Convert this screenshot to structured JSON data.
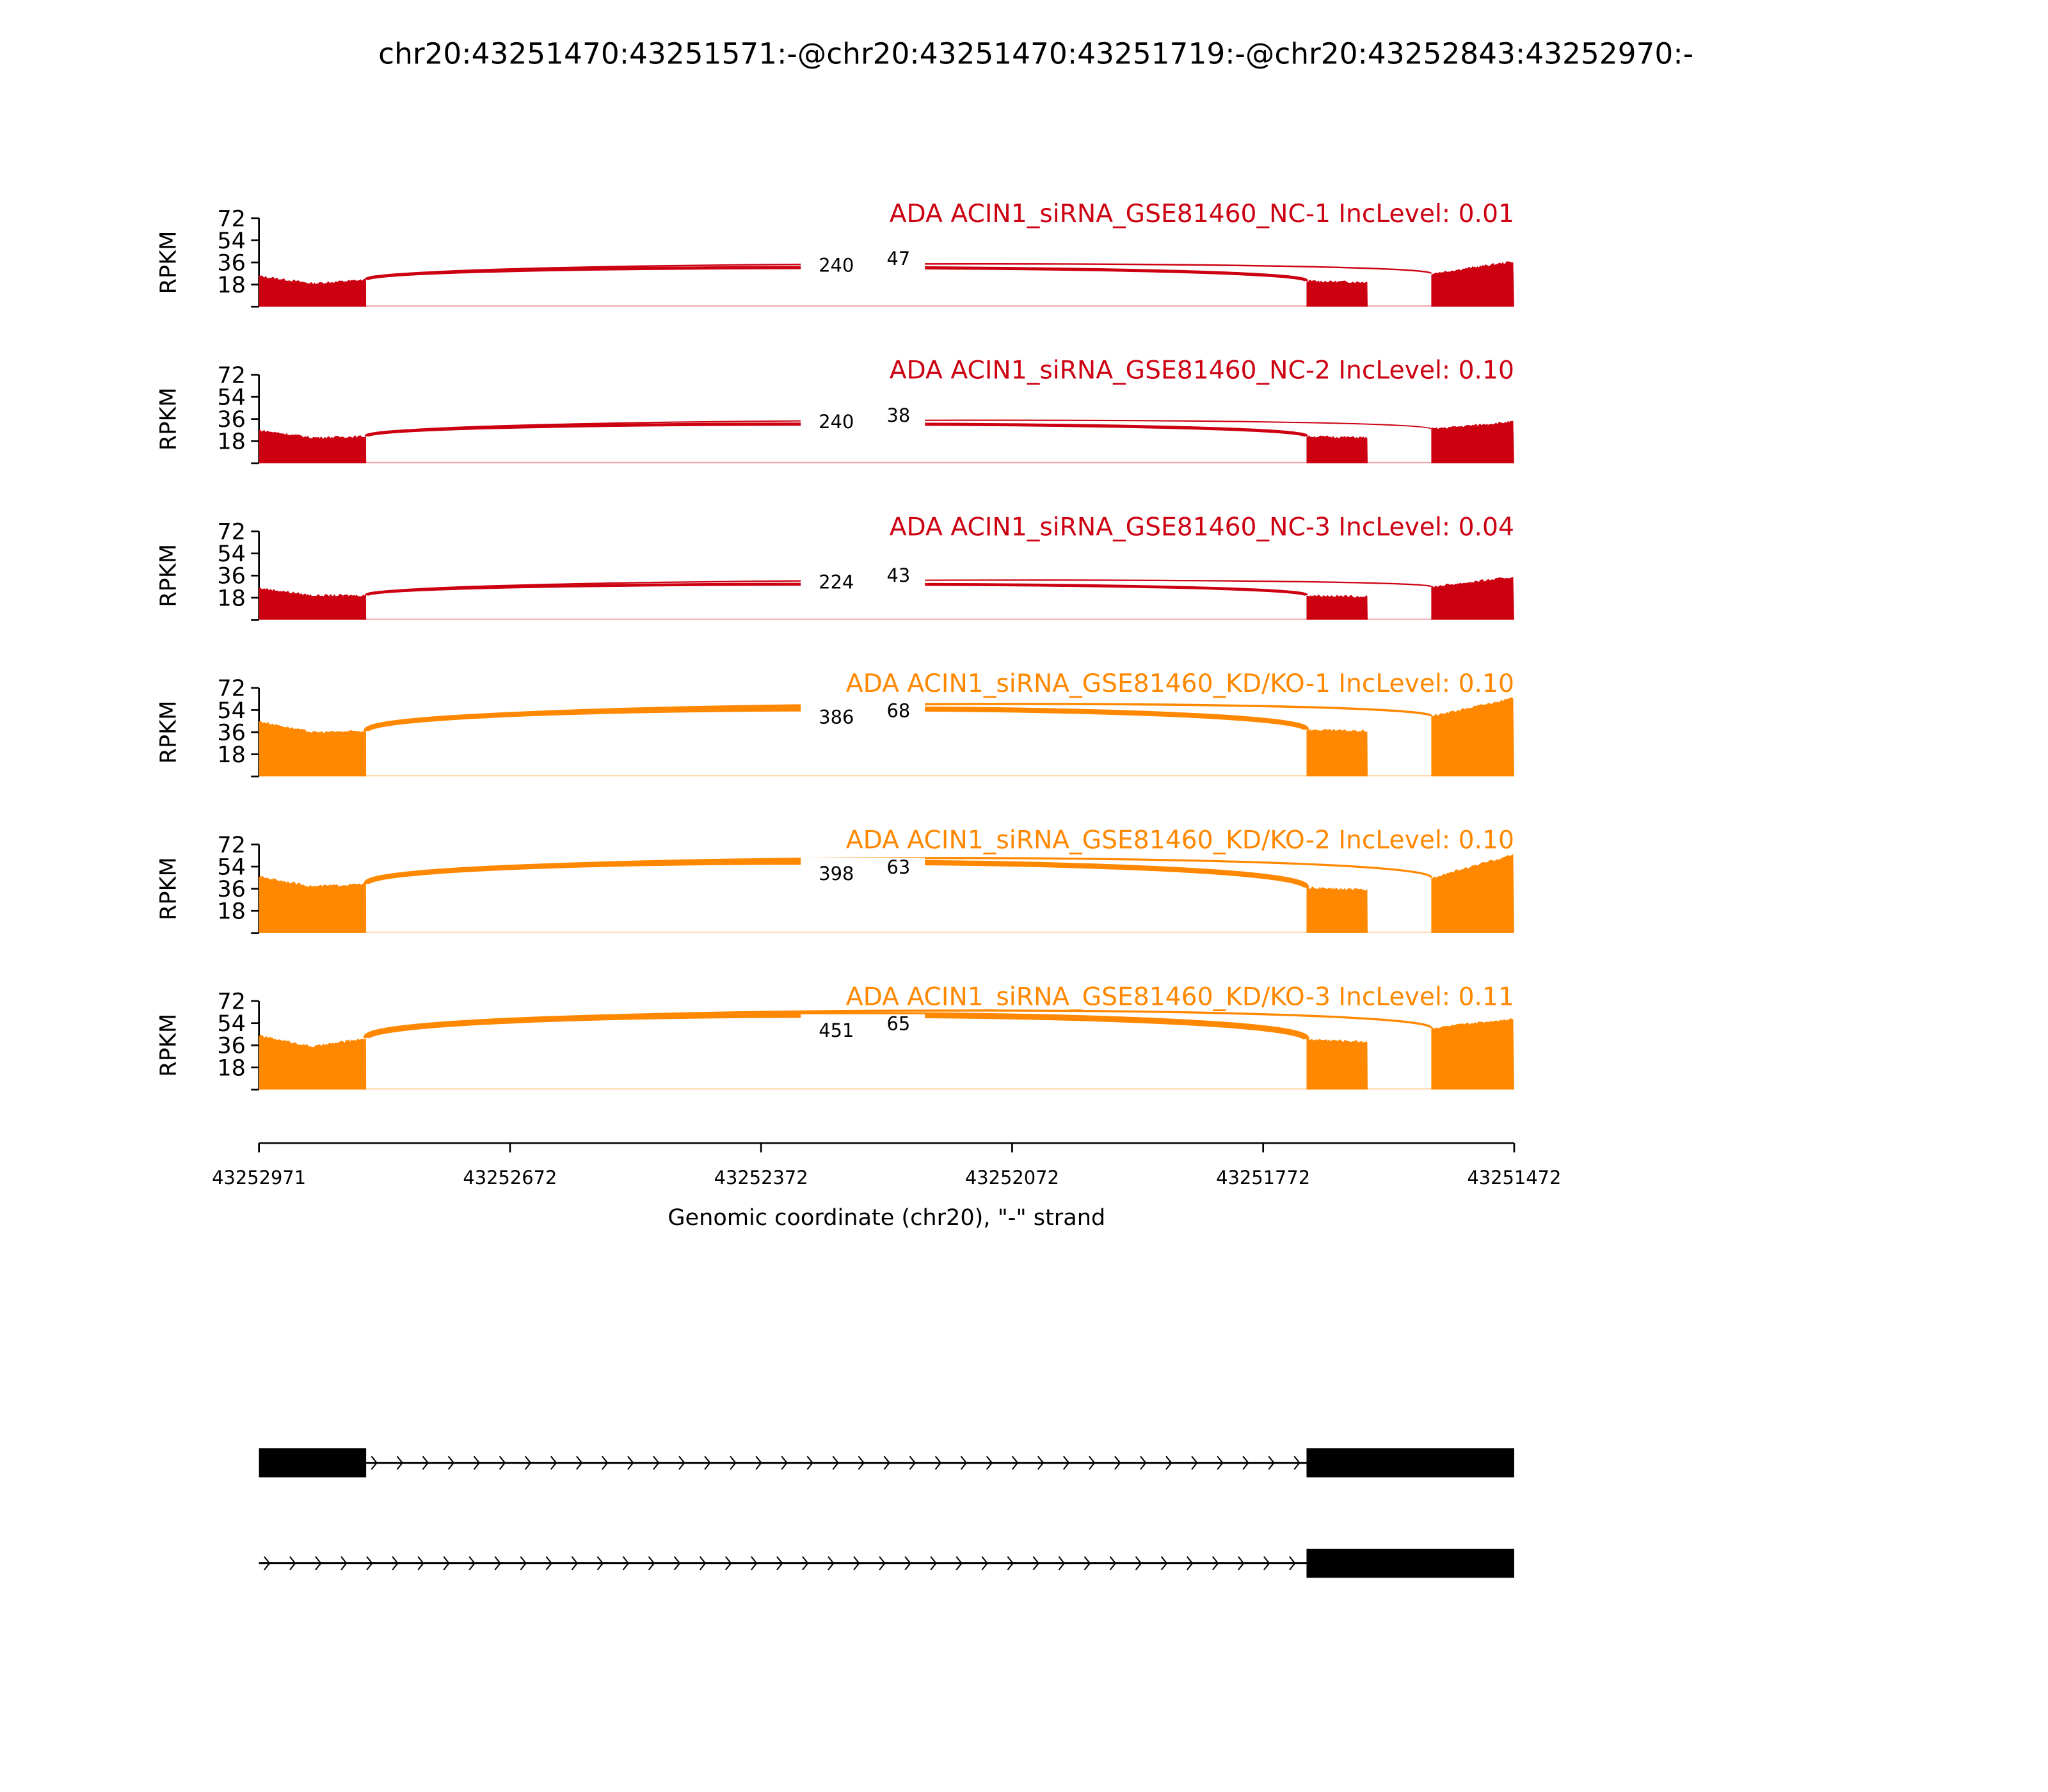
{
  "chart_data": {
    "type": "area",
    "title": "chr20:43251470:43251571:-@chr20:43251470:43251719:-@chr20:43252843:43252970:-",
    "xlabel": "Genomic coordinate (chr20), \"-\" strand",
    "ylabel": "RPKM",
    "xlim": [
      43252971,
      43251472
    ],
    "x_ticks": [
      "43252971",
      "43252672",
      "43252372",
      "43252072",
      "43251772",
      "43251472"
    ],
    "ylim": [
      0,
      72
    ],
    "y_ticks": [
      "18",
      "36",
      "54",
      "72"
    ],
    "grid": false,
    "exons": [
      {
        "start": 43252971,
        "end": 43252843
      },
      {
        "start": 43251720,
        "end": 43251647
      },
      {
        "start": 43251571,
        "end": 43251472
      }
    ],
    "colors": {
      "control": "#cc0011",
      "knockdown": "#ff8800"
    },
    "series": [
      {
        "name": "ADA ACIN1_siRNA_GSE81460_NC-1 IncLevel: 0.01",
        "group": "control",
        "junction_counts": {
          "exon1_exon2": "240",
          "exon1_exon3": "47"
        },
        "coverage": {
          "exon1": [
            25,
            19,
            22
          ],
          "exon2": [
            21,
            20
          ],
          "exon3": [
            27,
            37
          ]
        }
      },
      {
        "name": "ADA ACIN1_siRNA_GSE81460_NC-2 IncLevel: 0.10",
        "group": "control",
        "junction_counts": {
          "exon1_exon2": "240",
          "exon1_exon3": "38"
        },
        "coverage": {
          "exon1": [
            27,
            21,
            22
          ],
          "exon2": [
            22,
            21
          ],
          "exon3": [
            28,
            34
          ]
        }
      },
      {
        "name": "ADA ACIN1_siRNA_GSE81460_NC-3 IncLevel: 0.04",
        "group": "control",
        "junction_counts": {
          "exon1_exon2": "224",
          "exon1_exon3": "43"
        },
        "coverage": {
          "exon1": [
            26,
            20,
            20
          ],
          "exon2": [
            20,
            19
          ],
          "exon3": [
            27,
            35
          ]
        }
      },
      {
        "name": "ADA ACIN1_siRNA_GSE81460_KD/KO-1 IncLevel: 0.10",
        "group": "knockdown",
        "junction_counts": {
          "exon1_exon2": "386",
          "exon1_exon3": "68"
        },
        "coverage": {
          "exon1": [
            45,
            36,
            37
          ],
          "exon2": [
            38,
            37
          ],
          "exon3": [
            49,
            64
          ]
        }
      },
      {
        "name": "ADA ACIN1_siRNA_GSE81460_KD/KO-2 IncLevel: 0.10",
        "group": "knockdown",
        "junction_counts": {
          "exon1_exon2": "398",
          "exon1_exon3": "63"
        },
        "coverage": {
          "exon1": [
            46,
            38,
            40
          ],
          "exon2": [
            37,
            35
          ],
          "exon3": [
            45,
            64
          ]
        }
      },
      {
        "name": "ADA ACIN1_siRNA_GSE81460_KD/KO-3 IncLevel: 0.11",
        "group": "knockdown",
        "junction_counts": {
          "exon1_exon2": "451",
          "exon1_exon3": "65"
        },
        "coverage": {
          "exon1": [
            44,
            35,
            42
          ],
          "exon2": [
            41,
            39
          ],
          "exon3": [
            50,
            58
          ]
        }
      }
    ],
    "isoforms": [
      {
        "exons": [
          0,
          1,
          2
        ]
      },
      {
        "exons": [
          1,
          2
        ]
      }
    ]
  }
}
